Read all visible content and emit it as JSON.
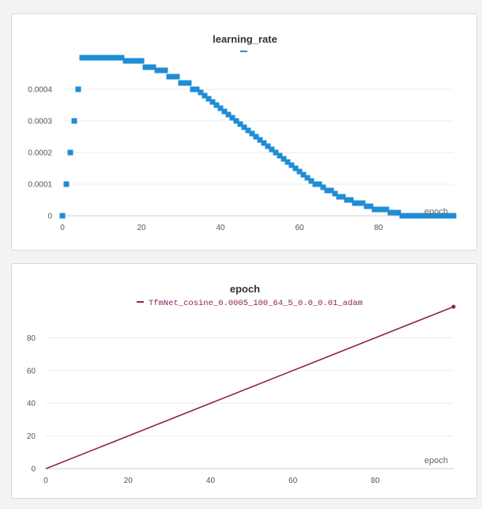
{
  "chart_data": [
    {
      "type": "scatter",
      "title": "learning_rate",
      "xlabel": "epoch",
      "ylabel": "",
      "xlim": [
        0,
        99
      ],
      "ylim": [
        0,
        0.0005
      ],
      "xticks": [
        "0",
        "20",
        "40",
        "60",
        "80"
      ],
      "xtick_values": [
        0,
        20,
        40,
        60,
        80
      ],
      "yticks": [
        "0",
        "0.0001",
        "0.0002",
        "0.0003",
        "0.0004"
      ],
      "ytick_values": [
        0,
        0.0001,
        0.0002,
        0.0003,
        0.0004
      ],
      "grid": true,
      "legend_position": "top-center",
      "series": [
        {
          "color": "#1f8dd6",
          "x": [
            0,
            1,
            2,
            3,
            4,
            5,
            6,
            7,
            8,
            9,
            10,
            11,
            12,
            13,
            14,
            15,
            16,
            17,
            18,
            19,
            20,
            21,
            22,
            23,
            24,
            25,
            26,
            27,
            28,
            29,
            30,
            31,
            32,
            33,
            34,
            35,
            36,
            37,
            38,
            39,
            40,
            41,
            42,
            43,
            44,
            45,
            46,
            47,
            48,
            49,
            50,
            51,
            52,
            53,
            54,
            55,
            56,
            57,
            58,
            59,
            60,
            61,
            62,
            63,
            64,
            65,
            66,
            67,
            68,
            69,
            70,
            71,
            72,
            73,
            74,
            75,
            76,
            77,
            78,
            79,
            80,
            81,
            82,
            83,
            84,
            85,
            86,
            87,
            88,
            89,
            90,
            91,
            92,
            93,
            94,
            95,
            96,
            97,
            98,
            99
          ],
          "y": [
            0,
            0.0001,
            0.0002,
            0.0003,
            0.0004,
            0.0005,
            0.0005,
            0.0005,
            0.0005,
            0.0005,
            0.0005,
            0.0005,
            0.0005,
            0.0005,
            0.0005,
            0.0005,
            0.00049,
            0.00049,
            0.00049,
            0.00049,
            0.00049,
            0.00047,
            0.00047,
            0.00047,
            0.00046,
            0.00046,
            0.00046,
            0.00044,
            0.00044,
            0.00044,
            0.00042,
            0.00042,
            0.00042,
            0.0004,
            0.0004,
            0.00039,
            0.00038,
            0.00037,
            0.00036,
            0.00035,
            0.00034,
            0.00033,
            0.00032,
            0.00031,
            0.0003,
            0.00029,
            0.00028,
            0.00027,
            0.00026,
            0.00025,
            0.00024,
            0.00023,
            0.00022,
            0.00021,
            0.0002,
            0.00019,
            0.00018,
            0.00017,
            0.00016,
            0.00015,
            0.00014,
            0.00013,
            0.00012,
            0.00011,
            0.0001,
            0.0001,
            9e-05,
            8e-05,
            8e-05,
            7e-05,
            6e-05,
            6e-05,
            5e-05,
            5e-05,
            4e-05,
            4e-05,
            4e-05,
            3e-05,
            3e-05,
            2e-05,
            2e-05,
            2e-05,
            2e-05,
            1e-05,
            1e-05,
            1e-05,
            0,
            0,
            0,
            0,
            0,
            0,
            0,
            0,
            0,
            0,
            0,
            0,
            0,
            0
          ]
        }
      ]
    },
    {
      "type": "line",
      "title": "epoch",
      "xlabel": "epoch",
      "ylabel": "",
      "xlim": [
        0,
        99
      ],
      "ylim": [
        0,
        100
      ],
      "xticks": [
        "0",
        "20",
        "40",
        "60",
        "80"
      ],
      "xtick_values": [
        0,
        20,
        40,
        60,
        80
      ],
      "yticks": [
        "0",
        "20",
        "40",
        "60",
        "80"
      ],
      "ytick_values": [
        0,
        20,
        40,
        60,
        80
      ],
      "grid": true,
      "legend_position": "top-center",
      "series": [
        {
          "name": "TfmNet_cosine_0.0005_100_64_5_0.0_0.01_adam",
          "color": "#8e1f5a",
          "x": [
            0,
            99
          ],
          "y": [
            0,
            99
          ]
        }
      ]
    }
  ]
}
